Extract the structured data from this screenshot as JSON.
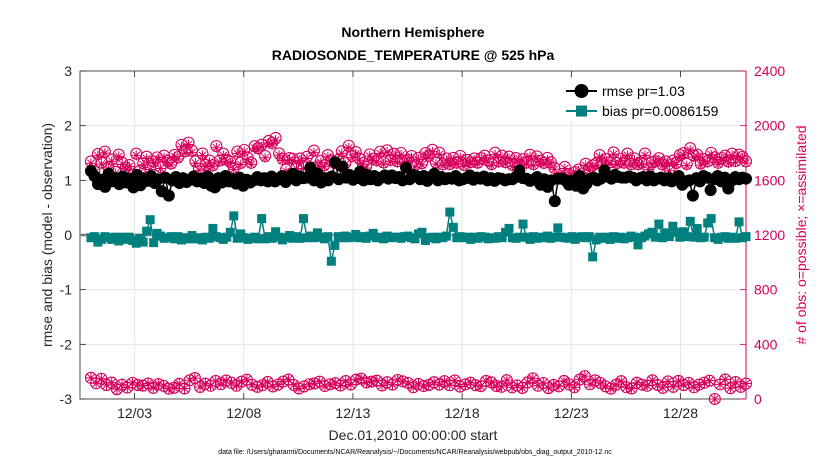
{
  "chart_data": {
    "type": "line",
    "title": "Northern Hemisphere",
    "subtitle": "RADIOSONDE_TEMPERATURE @ 525 hPa",
    "xlabel": "Dec.01,2010 00:00:00 start",
    "ylabel": "rmse and bias (model - observation)",
    "y2label": "# of obs: o=possible; ×=assimilated",
    "xlim": [
      0.5,
      31.0
    ],
    "ylim": [
      -3,
      3
    ],
    "y2lim": [
      0,
      2400
    ],
    "xticks": [
      3,
      8,
      13,
      18,
      23,
      28
    ],
    "xtick_labels": [
      "12/03",
      "12/08",
      "12/13",
      "12/18",
      "12/23",
      "12/28"
    ],
    "yticks": [
      -3,
      -2,
      -1,
      0,
      1,
      2,
      3
    ],
    "ytick_labels": [
      "-3",
      "-2",
      "-1",
      "0",
      "1",
      "2",
      "3"
    ],
    "y2ticks": [
      0,
      400,
      800,
      1200,
      1600,
      2000,
      2400
    ],
    "y2tick_labels": [
      "0",
      "400",
      "800",
      "1200",
      "1600",
      "2000",
      "2400"
    ],
    "grid": true,
    "legend_position": "top-right",
    "legend": [
      "rmse pr=1.03",
      "bias pr=0.0086159"
    ],
    "colors": {
      "rmse": "#000000",
      "bias": "#00807f",
      "obs": "#d6005c",
      "zero": "#b0b0b0",
      "grid": "#e6e6e6"
    },
    "rmse": [
      1.17,
      1.08,
      0.93,
      1.01,
      0.88,
      1.12,
      0.98,
      1.04,
      0.93,
      1.07,
      0.96,
      1.03,
      0.87,
      1.1,
      0.91,
      1.03,
      0.99,
      1.08,
      0.95,
      1.02,
      0.8,
      1.05,
      0.72,
      1.0,
      1.06,
      0.95,
      1.04,
      0.97,
      1.01,
      1.07,
      0.98,
      1.03,
      0.95,
      1.07,
      0.9,
      0.87,
      1.04,
      0.96,
      1.08,
      0.98,
      1.02,
      0.94,
      1.05,
      0.9,
      1.01,
      0.96,
      1.0,
      1.06,
      1.0,
      1.04,
      0.98,
      1.07,
      0.98,
      1.02,
      1.08,
      0.97,
      1.05,
      1.12,
      1.0,
      1.07,
      1.04,
      1.05,
      1.23,
      1.0,
      1.12,
      0.96,
      1.04,
      1.0,
      1.07,
      1.33,
      1.02,
      1.25,
      1.05,
      1.1,
      1.01,
      1.04,
      1.16,
      1.0,
      1.1,
      1.02,
      1.08,
      1.0,
      1.05,
      1.09,
      1.03,
      1.09,
      1.04,
      1.06,
      1.0,
      1.23,
      1.02,
      1.1,
      1.07,
      1.02,
      1.08,
      0.99,
      1.06,
      1.12,
      1.0,
      1.06,
      1.02,
      1.04,
      1.03,
      1.08,
      1.0,
      1.02,
      1.04,
      1.09,
      1.01,
      1.05,
      1.03,
      1.07,
      1.0,
      1.04,
      0.99,
      1.04,
      1.03,
      1.0,
      1.02,
      1.02,
      1.06,
      1.18,
      1.04,
      1.03,
      0.99,
      1.01,
      1.06,
      0.92,
      1.02,
      0.88,
      1.0,
      0.62,
      1.03,
      1.03,
      1.0,
      0.92,
      1.0,
      0.9,
      1.08,
      0.85,
      0.94,
      1.03,
      1.05,
      1.0,
      1.03,
      1.18,
      1.07,
      1.03,
      1.1,
      1.06,
      1.05,
      1.05,
      1.07,
      1.05,
      1.0,
      1.04,
      1.06,
      1.0,
      1.07,
      1.0,
      1.03,
      1.05,
      1.0,
      1.04,
      0.98,
      1.02,
      1.08,
      0.92,
      0.98,
      1.0,
      0.72,
      1.04,
      0.98,
      1.08,
      1.05,
      0.82,
      1.02,
      1.08,
      0.98,
      1.05,
      0.85,
      1.0,
      1.06,
      1.02,
      1.05,
      1.03
    ],
    "bias": [
      -0.05,
      -0.03,
      -0.13,
      -0.08,
      -0.03,
      -0.05,
      -0.08,
      -0.04,
      -0.11,
      -0.04,
      -0.08,
      -0.04,
      -0.1,
      -0.15,
      -0.06,
      -0.13,
      0.07,
      0.28,
      -0.14,
      0.03,
      -0.02,
      -0.06,
      -0.05,
      -0.03,
      -0.07,
      -0.03,
      -0.09,
      -0.05,
      -0.07,
      -0.01,
      -0.07,
      -0.05,
      -0.09,
      -0.04,
      -0.06,
      0.12,
      -0.03,
      -0.05,
      -0.08,
      -0.04,
      0.05,
      0.35,
      -0.06,
      0.02,
      -0.05,
      -0.08,
      -0.06,
      -0.04,
      -0.07,
      0.3,
      -0.07,
      -0.03,
      -0.06,
      0.06,
      -0.04,
      -0.09,
      -0.05,
      -0.01,
      -0.06,
      -0.03,
      -0.06,
      0.3,
      -0.05,
      -0.02,
      -0.05,
      0.04,
      -0.04,
      -0.07,
      -0.03,
      -0.48,
      -0.19,
      -0.03,
      -0.05,
      -0.02,
      -0.05,
      -0.04,
      0.01,
      -0.05,
      -0.03,
      -0.06,
      -0.02,
      0.03,
      -0.05,
      -0.04,
      -0.07,
      -0.02,
      -0.05,
      -0.04,
      -0.04,
      -0.06,
      -0.03,
      -0.02,
      -0.05,
      -0.07,
      0.02,
      0.05,
      -0.1,
      -0.05,
      -0.04,
      -0.07,
      -0.04,
      -0.05,
      -0.02,
      0.42,
      0.14,
      -0.05,
      -0.03,
      -0.05,
      -0.04,
      -0.08,
      -0.04,
      -0.06,
      -0.03,
      -0.04,
      -0.07,
      -0.05,
      -0.06,
      -0.03,
      -0.05,
      0.05,
      0.12,
      -0.05,
      -0.06,
      -0.04,
      0.2,
      -0.04,
      -0.08,
      -0.03,
      -0.06,
      -0.04,
      -0.05,
      -0.02,
      -0.06,
      -0.04,
      0.13,
      -0.04,
      -0.05,
      -0.06,
      -0.03,
      -0.08,
      -0.04,
      -0.03,
      -0.05,
      -0.03,
      -0.4,
      -0.09,
      -0.04,
      -0.06,
      -0.04,
      -0.08,
      -0.03,
      -0.06,
      -0.04,
      -0.07,
      -0.05,
      -0.02,
      -0.04,
      -0.18,
      -0.05,
      -0.02,
      0.02,
      0.05,
      -0.04,
      0.2,
      -0.05,
      0.04,
      -0.03,
      0.16,
      0.05,
      -0.04,
      0.06,
      -0.03,
      0.25,
      -0.04,
      0.12,
      -0.05,
      -0.04,
      0.22,
      0.3,
      -0.05,
      -0.08,
      -0.04,
      -0.03,
      -0.06,
      -0.04,
      -0.06,
      0.24,
      -0.05,
      -0.03
    ],
    "obs_possible": [
      1738,
      1665,
      1792,
      1730,
      1810,
      1695,
      1752,
      1662,
      1788,
      1728,
      1692,
      1712,
      1640,
      1795,
      1668,
      1725,
      1773,
      1690,
      1738,
      1768,
      1698,
      1780,
      1742,
      1723,
      1786,
      1769,
      1860,
      1813,
      1876,
      1818,
      1738,
      1685,
      1796,
      1713,
      1745,
      1711,
      1851,
      1746,
      1795,
      1751,
      1735,
      1692,
      1811,
      1728,
      1822,
      1766,
      1729,
      1850,
      1836,
      1860,
      1778,
      1888,
      1874,
      1910,
      1797,
      1758,
      1678,
      1763,
      1758,
      1695,
      1760,
      1698,
      1773,
      1694,
      1817,
      1702,
      1742,
      1711,
      1785,
      1745,
      1727,
      1750,
      1812,
      1726,
      1853,
      1779,
      1807,
      1760,
      1726,
      1701,
      1790,
      1758,
      1747,
      1810,
      1731,
      1820,
      1750,
      1794,
      1740,
      1800,
      1746,
      1752,
      1778,
      1709,
      1765,
      1726,
      1800,
      1780,
      1823,
      1731,
      1802,
      1718,
      1760,
      1720,
      1764,
      1730,
      1779,
      1713,
      1749,
      1733,
      1760,
      1730,
      1762,
      1780,
      1745,
      1719,
      1802,
      1740,
      1780,
      1733,
      1773,
      1713,
      1763,
      1716,
      1755,
      1730,
      1787,
      1719,
      1775,
      1744,
      1728,
      1764,
      1732,
      1692,
      1617,
      1619,
      1698,
      1643,
      1620,
      1660,
      1680,
      1623,
      1721,
      1684,
      1710,
      1724,
      1785,
      1723,
      1755,
      1732,
      1804,
      1727,
      1758,
      1730,
      1795,
      1718,
      1760,
      1719,
      1730,
      1796,
      1689,
      1731,
      1740,
      1762,
      1718,
      1738,
      1681,
      1744,
      1727,
      1785,
      1799,
      1720,
      1835,
      1783,
      1788,
      1723,
      1756,
      1740,
      1801,
      1768,
      1729,
      1762,
      1780,
      1738,
      1795,
      1743,
      1788,
      1771,
      1739
    ],
    "obs_assimilated": [
      1724,
      1654,
      1780,
      1719,
      1799,
      1683,
      1741,
      1651,
      1775,
      1716,
      1681,
      1700,
      1629,
      1783,
      1657,
      1714,
      1760,
      1679,
      1726,
      1755,
      1687,
      1767,
      1730,
      1712,
      1774,
      1756,
      1846,
      1800,
      1862,
      1805,
      1726,
      1674,
      1783,
      1701,
      1733,
      1700,
      1838,
      1734,
      1782,
      1739,
      1723,
      1680,
      1797,
      1716,
      1809,
      1753,
      1717,
      1836,
      1822,
      1845,
      1765,
      1873,
      1859,
      1894,
      1784,
      1745,
      1667,
      1751,
      1745,
      1684,
      1747,
      1687,
      1760,
      1683,
      1803,
      1691,
      1730,
      1700,
      1772,
      1733,
      1715,
      1737,
      1798,
      1714,
      1838,
      1766,
      1793,
      1747,
      1714,
      1690,
      1777,
      1745,
      1735,
      1796,
      1719,
      1806,
      1738,
      1781,
      1728,
      1786,
      1734,
      1740,
      1765,
      1698,
      1752,
      1714,
      1786,
      1767,
      1809,
      1719,
      1789,
      1707,
      1747,
      1709,
      1751,
      1718,
      1766,
      1702,
      1736,
      1721,
      1747,
      1718,
      1749,
      1767,
      1733,
      1708,
      1788,
      1728,
      1767,
      1721,
      1760,
      1702,
      1750,
      1705,
      1742,
      1718,
      1774,
      1708,
      1762,
      1732,
      1716,
      1751,
      1720,
      1681,
      1606,
      1608,
      1687,
      1632,
      1609,
      1649,
      1669,
      1612,
      1709,
      1673,
      1698,
      1712,
      1772,
      1711,
      1742,
      1720,
      1791,
      1715,
      1746,
      1718,
      1782,
      1707,
      1747,
      1708,
      1718,
      1783,
      1678,
      1719,
      1728,
      1749,
      1707,
      1726,
      1670,
      1732,
      1715,
      1772,
      1786,
      1708,
      1821,
      1770,
      1775,
      1711,
      1743,
      1728,
      1788,
      1755,
      1717,
      1749,
      1767,
      1726,
      1782,
      1731,
      1775,
      1758,
      1727
    ],
    "obs_low_possible": [
      155,
      115,
      148,
      102,
      120,
      72,
      105,
      84,
      118,
      103,
      98,
      113,
      82,
      109,
      96,
      75,
      82,
      111,
      77,
      137,
      153,
      88,
      112,
      97,
      132,
      108,
      135,
      119,
      97,
      127,
      141,
      104,
      89,
      101,
      125,
      92,
      105,
      128,
      142,
      103,
      77,
      92,
      108,
      114,
      127,
      95,
      108,
      116,
      99,
      131,
      106,
      142,
      149,
      121,
      127,
      134,
      99,
      123,
      105,
      139,
      129,
      117,
      86,
      110,
      95,
      103,
      123,
      105,
      130,
      101,
      136,
      91,
      107,
      119,
      101,
      94,
      132,
      122,
      95,
      90,
      138,
      85,
      99,
      81,
      122,
      151,
      97,
      117,
      80,
      103,
      93,
      132,
      107,
      86,
      142,
      167,
      108,
      137,
      117,
      93,
      76,
      104,
      130,
      86,
      77,
      119,
      105,
      97,
      137,
      103,
      82,
      129,
      89,
      132,
      102,
      118,
      86,
      106,
      119,
      134,
      0,
      107,
      143,
      79,
      124,
      89,
      113
    ],
    "footnote": "data file: /Users/gharamti/Documents/NCAR/Reanalysis/~/Documents/NCAR/Reanalysis/webpub/obs_diag_output_2010-12.nc"
  }
}
